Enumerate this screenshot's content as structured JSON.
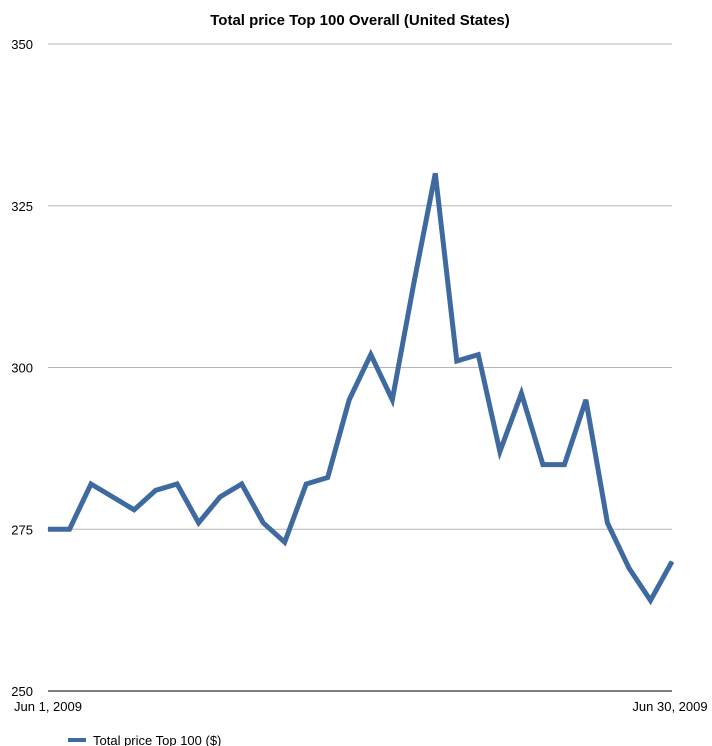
{
  "chart_data": {
    "type": "line",
    "title": "Total price Top 100 Overall (United States)",
    "xlabel": "",
    "ylabel": "",
    "x_tick_labels": [
      "Jun 1, 2009",
      "Jun 30, 2009"
    ],
    "x": [
      "2009-06-01",
      "2009-06-02",
      "2009-06-03",
      "2009-06-04",
      "2009-06-05",
      "2009-06-06",
      "2009-06-07",
      "2009-06-08",
      "2009-06-09",
      "2009-06-10",
      "2009-06-11",
      "2009-06-12",
      "2009-06-13",
      "2009-06-14",
      "2009-06-15",
      "2009-06-16",
      "2009-06-17",
      "2009-06-18",
      "2009-06-19",
      "2009-06-20",
      "2009-06-21",
      "2009-06-22",
      "2009-06-23",
      "2009-06-24",
      "2009-06-25",
      "2009-06-26",
      "2009-06-27",
      "2009-06-28",
      "2009-06-29",
      "2009-06-30"
    ],
    "ylim": [
      250,
      350
    ],
    "y_ticks": [
      250,
      275,
      300,
      325,
      350
    ],
    "grid": true,
    "legend_position": "bottom-left",
    "series": [
      {
        "name": "Total price Top 100 ($)",
        "color": "#3e6a9f",
        "values": [
          275,
          275,
          282,
          280,
          278,
          281,
          282,
          276,
          280,
          282,
          276,
          273,
          282,
          283,
          295,
          302,
          295,
          313,
          330,
          301,
          302,
          287,
          296,
          285,
          285,
          295,
          276,
          269,
          264,
          270
        ]
      }
    ]
  }
}
